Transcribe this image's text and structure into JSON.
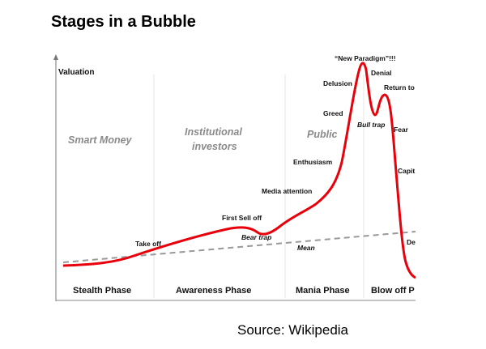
{
  "title": "Stages in a Bubble",
  "source": "Source: Wikipedia",
  "diagram": {
    "y_axis_label": "Valuation",
    "groups": [
      "Smart Money",
      "Institutional",
      "investors",
      "Public"
    ],
    "phases": [
      "Stealth Phase",
      "Awareness Phase",
      "Mania Phase",
      "Blow off P"
    ],
    "annotations": {
      "take_off": "Take off",
      "first_sell_off": "First Sell off",
      "bear_trap": "Bear trap",
      "media_attention": "Media attention",
      "enthusiasm": "Enthusiasm",
      "greed": "Greed",
      "delusion": "Delusion",
      "new_paradigm": "“New Paradigm”!!!",
      "denial": "Denial",
      "bull_trap": "Bull trap",
      "return_to": "Return to",
      "fear": "Fear",
      "capit": "Capit",
      "de": "De",
      "mean": "Mean"
    },
    "colors": {
      "curve": "#e8000b",
      "mean": "#999999",
      "group_text": "#8a8a8a"
    }
  }
}
